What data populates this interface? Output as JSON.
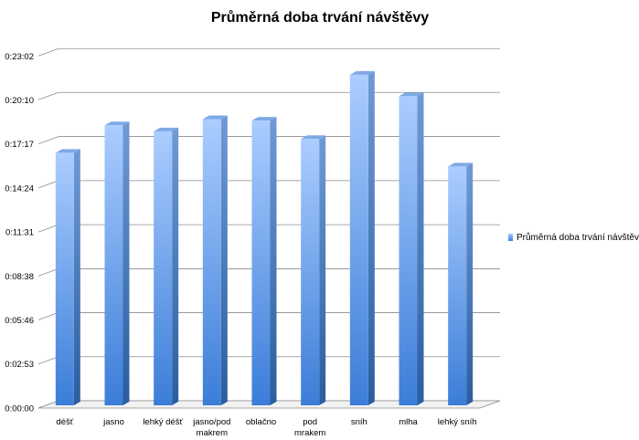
{
  "chart_data": {
    "type": "bar",
    "title": "Průměrná doba trvání návštěvy",
    "categories": [
      [
        "déšť"
      ],
      [
        "jasno"
      ],
      [
        "lehký déšť"
      ],
      [
        "jasno/pod",
        "makrem"
      ],
      [
        "oblačno"
      ],
      [
        "pod",
        "mrakem"
      ],
      [
        "sníh"
      ],
      [
        "mlha"
      ],
      [
        "lehký sníh"
      ]
    ],
    "series": [
      {
        "name": "Průměrná doba trvání návštěvy",
        "values": [
          16.7,
          18.5,
          18.1,
          18.9,
          18.8,
          17.6,
          21.8,
          20.4,
          15.8
        ],
        "color": "#4a8fe0"
      }
    ],
    "ylim": [
      0,
      23.05
    ],
    "y_ticks": [
      {
        "value": 0,
        "label": "0:00:00"
      },
      {
        "value": 2.8833,
        "label": "0:02:53"
      },
      {
        "value": 5.7667,
        "label": "0:05:46"
      },
      {
        "value": 8.6333,
        "label": "0:08:38"
      },
      {
        "value": 11.5167,
        "label": "0:11:31"
      },
      {
        "value": 14.4,
        "label": "0:14:24"
      },
      {
        "value": 17.2833,
        "label": "0:17:17"
      },
      {
        "value": 20.1667,
        "label": "0:20:10"
      },
      {
        "value": 23.0333,
        "label": "0:23:02"
      }
    ],
    "xlabel": "",
    "ylabel": "",
    "grid": true,
    "legend_position": "right",
    "colors": {
      "bar_light": "#a9cbff",
      "bar_dark": "#3d7fd6",
      "bar_side": "#2f64a8",
      "bar_top": "#7aa8e6",
      "grid": "#8c8c8c"
    }
  }
}
